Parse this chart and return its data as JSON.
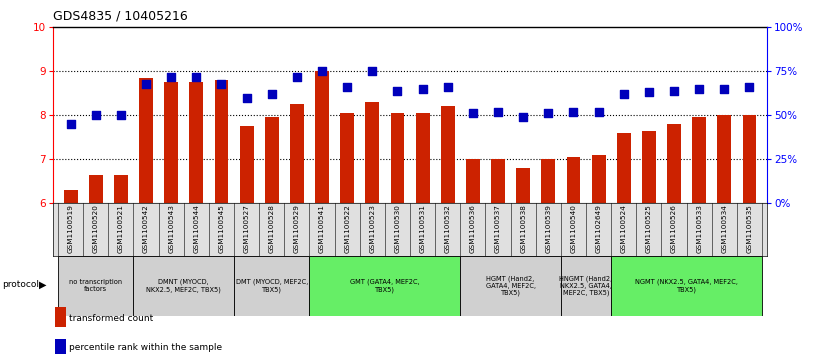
{
  "title": "GDS4835 / 10405216",
  "samples": [
    "GSM1100519",
    "GSM1100520",
    "GSM1100521",
    "GSM1100542",
    "GSM1100543",
    "GSM1100544",
    "GSM1100545",
    "GSM1100527",
    "GSM1100528",
    "GSM1100529",
    "GSM1100541",
    "GSM1100522",
    "GSM1100523",
    "GSM1100530",
    "GSM1100531",
    "GSM1100532",
    "GSM1100536",
    "GSM1100537",
    "GSM1100538",
    "GSM1100539",
    "GSM1100540",
    "GSM1102649",
    "GSM1100524",
    "GSM1100525",
    "GSM1100526",
    "GSM1100533",
    "GSM1100534",
    "GSM1100535"
  ],
  "bar_values": [
    6.3,
    6.65,
    6.65,
    8.85,
    8.75,
    8.75,
    8.8,
    7.75,
    7.95,
    8.25,
    9.0,
    8.05,
    8.3,
    8.05,
    8.05,
    8.2,
    7.0,
    7.0,
    6.8,
    7.0,
    7.05,
    7.1,
    7.6,
    7.65,
    7.8,
    7.95,
    8.0,
    8.0
  ],
  "blue_pct": [
    45,
    50,
    50,
    68,
    72,
    72,
    68,
    60,
    62,
    72,
    75,
    66,
    75,
    64,
    65,
    66,
    51,
    52,
    49,
    51,
    52,
    52,
    62,
    63,
    64,
    65,
    65,
    66
  ],
  "protocols": [
    {
      "label": "no transcription\nfactors",
      "start": 0,
      "end": 3,
      "color": "#d0d0d0"
    },
    {
      "label": "DMNT (MYOCD,\nNKX2.5, MEF2C, TBX5)",
      "start": 3,
      "end": 7,
      "color": "#d0d0d0"
    },
    {
      "label": "DMT (MYOCD, MEF2C,\nTBX5)",
      "start": 7,
      "end": 10,
      "color": "#d0d0d0"
    },
    {
      "label": "GMT (GATA4, MEF2C,\nTBX5)",
      "start": 10,
      "end": 16,
      "color": "#66ee66"
    },
    {
      "label": "HGMT (Hand2,\nGATA4, MEF2C,\nTBX5)",
      "start": 16,
      "end": 20,
      "color": "#d0d0d0"
    },
    {
      "label": "HNGMT (Hand2,\nNKX2.5, GATA4,\nMEF2C, TBX5)",
      "start": 20,
      "end": 22,
      "color": "#d0d0d0"
    },
    {
      "label": "NGMT (NKX2.5, GATA4, MEF2C,\nTBX5)",
      "start": 22,
      "end": 28,
      "color": "#66ee66"
    }
  ],
  "ylim_left": [
    6,
    10
  ],
  "ylim_right": [
    0,
    100
  ],
  "yticks_left": [
    6,
    7,
    8,
    9,
    10
  ],
  "yticks_right": [
    0,
    25,
    50,
    75,
    100
  ],
  "ytick_labels_right": [
    "0%",
    "25%",
    "50%",
    "75%",
    "100%"
  ],
  "bar_color": "#cc2200",
  "blue_color": "#0000bb",
  "bar_width": 0.55,
  "blue_marker_size": 40
}
